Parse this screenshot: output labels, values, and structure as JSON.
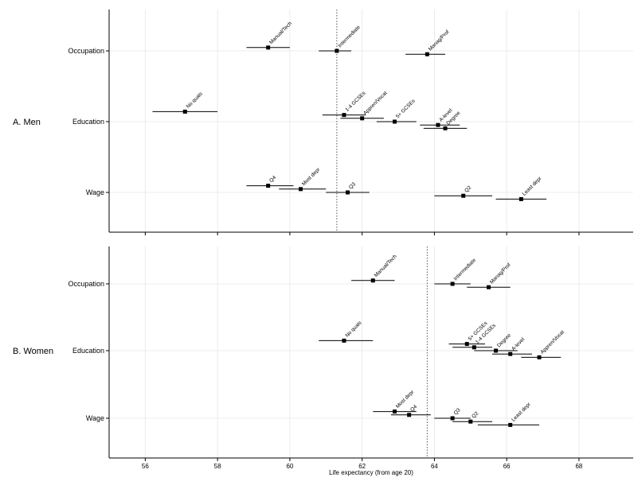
{
  "chart_data": {
    "type": "scatter",
    "subtype": "forest-plot",
    "x_axis": {
      "label": "Life expectancy (from age 20)",
      "range": [
        55,
        69.5
      ],
      "ticks": [
        56,
        58,
        60,
        62,
        64,
        66,
        68
      ]
    },
    "grid": true,
    "panels": [
      {
        "title": "A. Men",
        "reference_line": 61.3,
        "groups": [
          "Occupation",
          "Education",
          "Wage"
        ],
        "points": [
          {
            "label": "Manual/Tech",
            "group": "Occupation",
            "offset": 1,
            "x": 59.4,
            "lo": 58.8,
            "hi": 60.0
          },
          {
            "label": "Intermediate",
            "group": "Occupation",
            "offset": 0,
            "x": 61.3,
            "lo": 60.8,
            "hi": 61.7
          },
          {
            "label": "Manag/Prof",
            "group": "Occupation",
            "offset": -1,
            "x": 63.8,
            "lo": 63.2,
            "hi": 64.3
          },
          {
            "label": "No quals",
            "group": "Education",
            "offset": 3,
            "x": 57.1,
            "lo": 56.2,
            "hi": 58.0
          },
          {
            "label": "1-4 GCSEs",
            "group": "Education",
            "offset": 2,
            "x": 61.5,
            "lo": 60.9,
            "hi": 62.1
          },
          {
            "label": "Appren/Vocat",
            "group": "Education",
            "offset": 1,
            "x": 62.0,
            "lo": 61.4,
            "hi": 62.6
          },
          {
            "label": "5+ GCSEs",
            "group": "Education",
            "offset": 0,
            "x": 62.9,
            "lo": 62.4,
            "hi": 63.5
          },
          {
            "label": "A-level",
            "group": "Education",
            "offset": -1,
            "x": 64.1,
            "lo": 63.6,
            "hi": 64.7
          },
          {
            "label": "Degree",
            "group": "Education",
            "offset": -2,
            "x": 64.3,
            "lo": 63.7,
            "hi": 64.9
          },
          {
            "label": "Q4",
            "group": "Wage",
            "offset": 2,
            "x": 59.4,
            "lo": 58.8,
            "hi": 60.1
          },
          {
            "label": "Most depr",
            "group": "Wage",
            "offset": 1,
            "x": 60.3,
            "lo": 59.7,
            "hi": 61.0
          },
          {
            "label": "Q3",
            "group": "Wage",
            "offset": 0,
            "x": 61.6,
            "lo": 61.0,
            "hi": 62.2
          },
          {
            "label": "Q2",
            "group": "Wage",
            "offset": -1,
            "x": 64.8,
            "lo": 64.0,
            "hi": 65.6
          },
          {
            "label": "Least depr",
            "group": "Wage",
            "offset": -2,
            "x": 66.4,
            "lo": 65.7,
            "hi": 67.1
          }
        ]
      },
      {
        "title": "B. Women",
        "reference_line": 63.8,
        "groups": [
          "Occupation",
          "Education",
          "Wage"
        ],
        "points": [
          {
            "label": "Manual/Tech",
            "group": "Occupation",
            "offset": 1,
            "x": 62.3,
            "lo": 61.7,
            "hi": 62.9
          },
          {
            "label": "Intermediate",
            "group": "Occupation",
            "offset": 0,
            "x": 64.5,
            "lo": 64.0,
            "hi": 65.0
          },
          {
            "label": "Manag/Prof",
            "group": "Occupation",
            "offset": -1,
            "x": 65.5,
            "lo": 64.9,
            "hi": 66.1
          },
          {
            "label": "No quals",
            "group": "Education",
            "offset": 3,
            "x": 61.5,
            "lo": 60.8,
            "hi": 62.3
          },
          {
            "label": "5+ GCSEs",
            "group": "Education",
            "offset": 2,
            "x": 64.9,
            "lo": 64.4,
            "hi": 65.4
          },
          {
            "label": "1-4 GCSEs",
            "group": "Education",
            "offset": 1,
            "x": 65.1,
            "lo": 64.5,
            "hi": 65.6
          },
          {
            "label": "Degree",
            "group": "Education",
            "offset": 0,
            "x": 65.7,
            "lo": 65.1,
            "hi": 66.3
          },
          {
            "label": "A-level",
            "group": "Education",
            "offset": -1,
            "x": 66.1,
            "lo": 65.6,
            "hi": 66.7
          },
          {
            "label": "Appren/Vocat",
            "group": "Education",
            "offset": -2,
            "x": 66.9,
            "lo": 66.4,
            "hi": 67.5
          },
          {
            "label": "Most depr",
            "group": "Wage",
            "offset": 2,
            "x": 62.9,
            "lo": 62.3,
            "hi": 63.5
          },
          {
            "label": "Q4",
            "group": "Wage",
            "offset": 1,
            "x": 63.3,
            "lo": 62.8,
            "hi": 63.9
          },
          {
            "label": "Q3",
            "group": "Wage",
            "offset": 0,
            "x": 64.5,
            "lo": 64.0,
            "hi": 65.0
          },
          {
            "label": "Q2",
            "group": "Wage",
            "offset": -1,
            "x": 65.0,
            "lo": 64.5,
            "hi": 65.6
          },
          {
            "label": "Least depr",
            "group": "Wage",
            "offset": -2,
            "x": 66.1,
            "lo": 65.2,
            "hi": 66.9
          }
        ]
      }
    ]
  }
}
